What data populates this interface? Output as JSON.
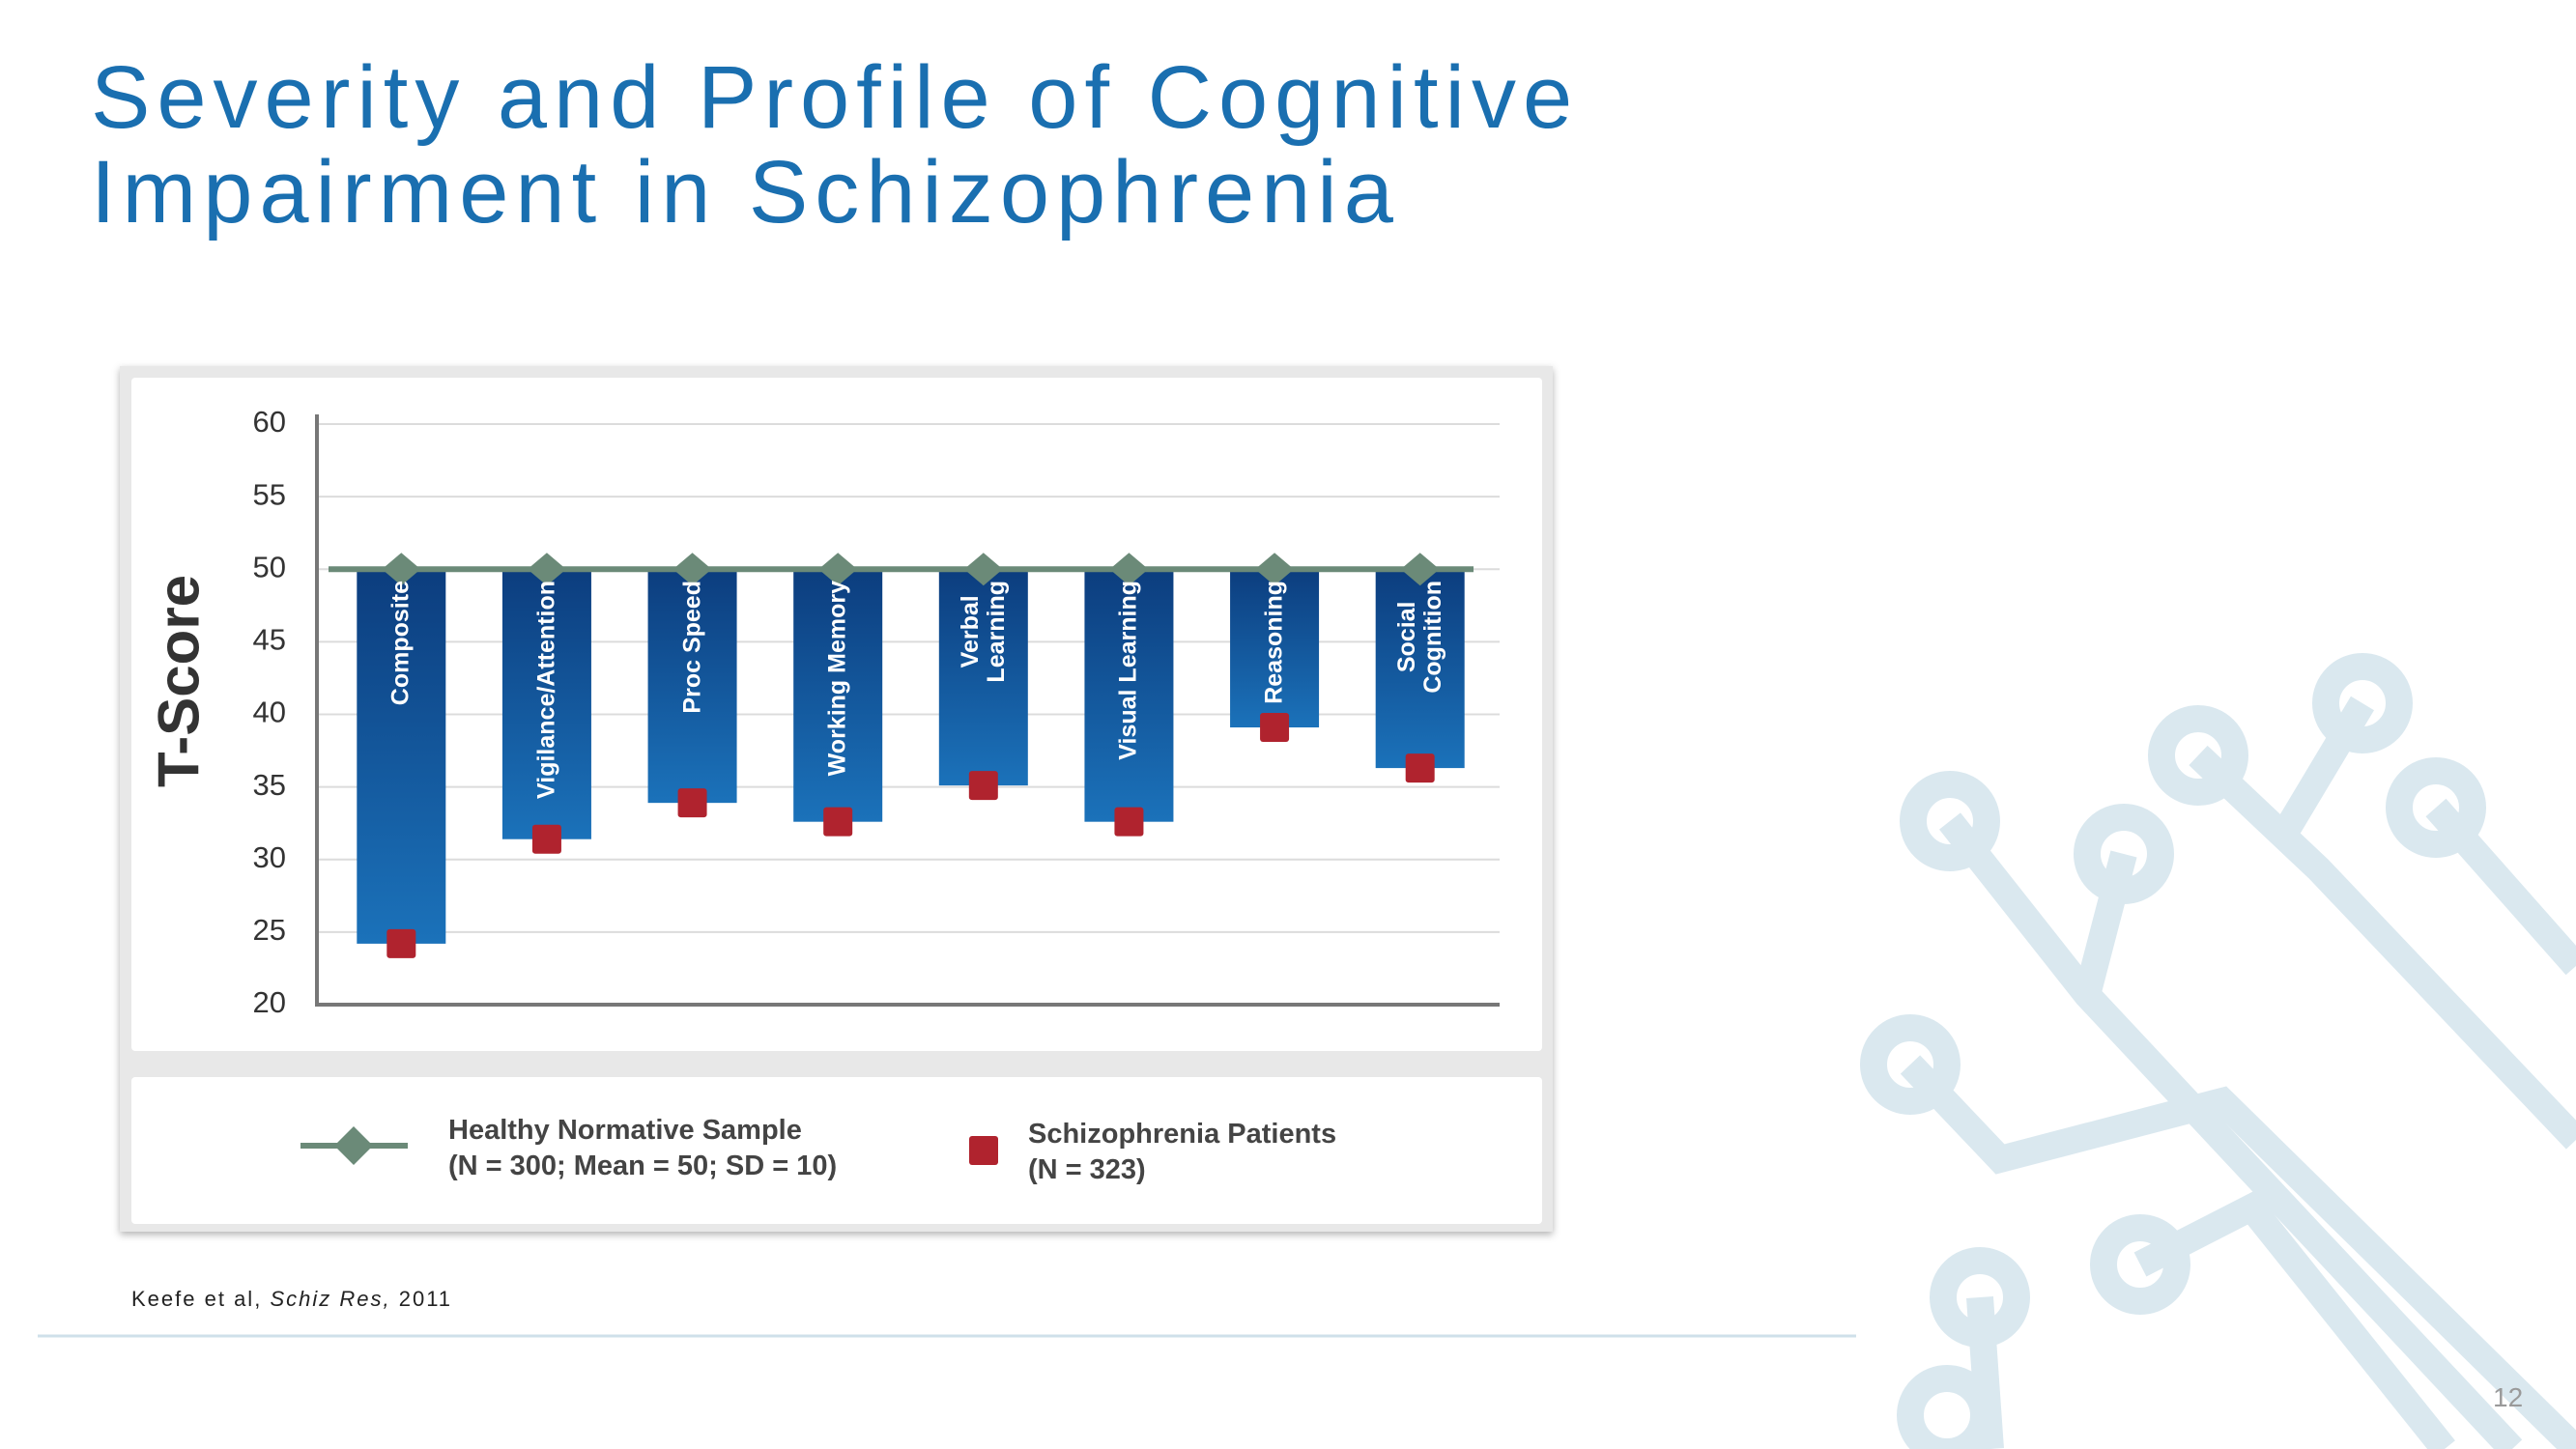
{
  "title": "Severity and Profile of Cognitive Impairment in Schizophrenia",
  "citation": {
    "authors": "Keefe et al,",
    "journal": "Schiz Res,",
    "year": "2011"
  },
  "page_number": "12",
  "chart_data": {
    "type": "bar",
    "ylabel": "T-Score",
    "categories": [
      "Composite",
      "Vigilance/Attention",
      "Proc Speed",
      "Working Memory",
      "Verbal\nLearning",
      "Visual Learning",
      "Reasoning",
      "Social\nCognition"
    ],
    "series": [
      {
        "name": "Healthy Normative Sample\n(N = 300; Mean = 50; SD = 10)",
        "color": "#6b8a78",
        "values": [
          50,
          50,
          50,
          50,
          50,
          50,
          50,
          50
        ]
      },
      {
        "name": "Schizophrenia Patients\n(N = 323)",
        "color": "#b0232e",
        "values": [
          24.2,
          31.4,
          33.9,
          32.6,
          35.1,
          32.6,
          39.1,
          36.3
        ]
      }
    ],
    "ylim": [
      20,
      60
    ],
    "yticks": [
      20,
      25,
      30,
      35,
      40,
      45,
      50,
      55,
      60
    ],
    "grid": true
  }
}
